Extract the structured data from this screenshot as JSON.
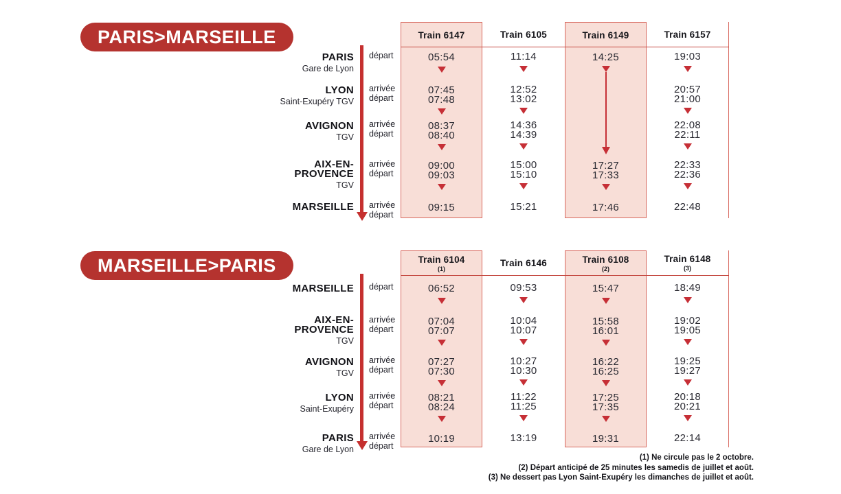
{
  "colors": {
    "badge_red": "#b5332f",
    "accent_red": "#c62f36",
    "pink_column": "#f8ded7",
    "border_red": "#d8685e"
  },
  "timetables": [
    {
      "badge": "PARIS>MARSEILLE",
      "trains": [
        {
          "name": "Train 6147",
          "note": "",
          "highlighted": true,
          "through_section": false
        },
        {
          "name": "Train 6105",
          "note": "",
          "highlighted": false,
          "through_section": false
        },
        {
          "name": "Train 6149",
          "note": "",
          "highlighted": true,
          "through_section": true
        },
        {
          "name": "Train 6157",
          "note": "",
          "highlighted": false,
          "through_section": false
        }
      ],
      "stations": [
        {
          "name": "PARIS",
          "sub": "Gare de Lyon",
          "labels": [
            "départ"
          ]
        },
        {
          "name": "LYON",
          "sub": "Saint-Exupéry TGV",
          "labels": [
            "arrivée",
            "départ"
          ]
        },
        {
          "name": "AVIGNON",
          "sub": "TGV",
          "labels": [
            "arrivée",
            "départ"
          ]
        },
        {
          "name": "AIX-EN-PROVENCE",
          "sub": "TGV",
          "labels": [
            "arrivée",
            "départ"
          ]
        },
        {
          "name": "MARSEILLE",
          "sub": "",
          "labels": [
            "arrivée",
            "départ"
          ]
        }
      ],
      "times": [
        [
          [
            "05:54"
          ],
          [
            "11:14"
          ],
          [
            "14:25"
          ],
          [
            "19:03"
          ]
        ],
        [
          [
            "07:45",
            "07:48"
          ],
          [
            "12:52",
            "13:02"
          ],
          [],
          [
            "20:57",
            "21:00"
          ]
        ],
        [
          [
            "08:37",
            "08:40"
          ],
          [
            "14:36",
            "14:39"
          ],
          [],
          [
            "22:08",
            "22:11"
          ]
        ],
        [
          [
            "09:00",
            "09:03"
          ],
          [
            "15:00",
            "15:10"
          ],
          [
            "17:27",
            "17:33"
          ],
          [
            "22:33",
            "22:36"
          ]
        ],
        [
          [
            "09:15"
          ],
          [
            "15:21"
          ],
          [
            "17:46"
          ],
          [
            "22:48"
          ]
        ]
      ]
    },
    {
      "badge": "MARSEILLE>PARIS",
      "trains": [
        {
          "name": "Train 6104",
          "note": "(1)",
          "highlighted": true,
          "through_section": false
        },
        {
          "name": "Train 6146",
          "note": "",
          "highlighted": false,
          "through_section": false
        },
        {
          "name": "Train 6108",
          "note": "(2)",
          "highlighted": true,
          "through_section": false
        },
        {
          "name": "Train 6148",
          "note": "(3)",
          "highlighted": false,
          "through_section": false
        }
      ],
      "stations": [
        {
          "name": "MARSEILLE",
          "sub": "",
          "labels": [
            "départ"
          ]
        },
        {
          "name": "AIX-EN-PROVENCE",
          "sub": "TGV",
          "labels": [
            "arrivée",
            "départ"
          ]
        },
        {
          "name": "AVIGNON",
          "sub": "TGV",
          "labels": [
            "arrivée",
            "départ"
          ]
        },
        {
          "name": "LYON",
          "sub": "Saint-Exupéry",
          "labels": [
            "arrivée",
            "départ"
          ]
        },
        {
          "name": "PARIS",
          "sub": "Gare de Lyon",
          "labels": [
            "arrivée",
            "départ"
          ]
        }
      ],
      "times": [
        [
          [
            "06:52"
          ],
          [
            "09:53"
          ],
          [
            "15:47"
          ],
          [
            "18:49"
          ]
        ],
        [
          [
            "07:04",
            "07:07"
          ],
          [
            "10:04",
            "10:07"
          ],
          [
            "15:58",
            "16:01"
          ],
          [
            "19:02",
            "19:05"
          ]
        ],
        [
          [
            "07:27",
            "07:30"
          ],
          [
            "10:27",
            "10:30"
          ],
          [
            "16:22",
            "16:25"
          ],
          [
            "19:25",
            "19:27"
          ]
        ],
        [
          [
            "08:21",
            "08:24"
          ],
          [
            "11:22",
            "11:25"
          ],
          [
            "17:25",
            "17:35"
          ],
          [
            "20:18",
            "20:21"
          ]
        ],
        [
          [
            "10:19"
          ],
          [
            "13:19"
          ],
          [
            "19:31"
          ],
          [
            "22:14"
          ]
        ]
      ]
    }
  ],
  "footnotes": [
    "(1) Ne circule pas le 2 octobre.",
    "(2) Départ anticipé de 25 minutes les samedis de juillet et août.",
    "(3) Ne dessert pas Lyon Saint-Exupéry les dimanches de juillet et août."
  ]
}
